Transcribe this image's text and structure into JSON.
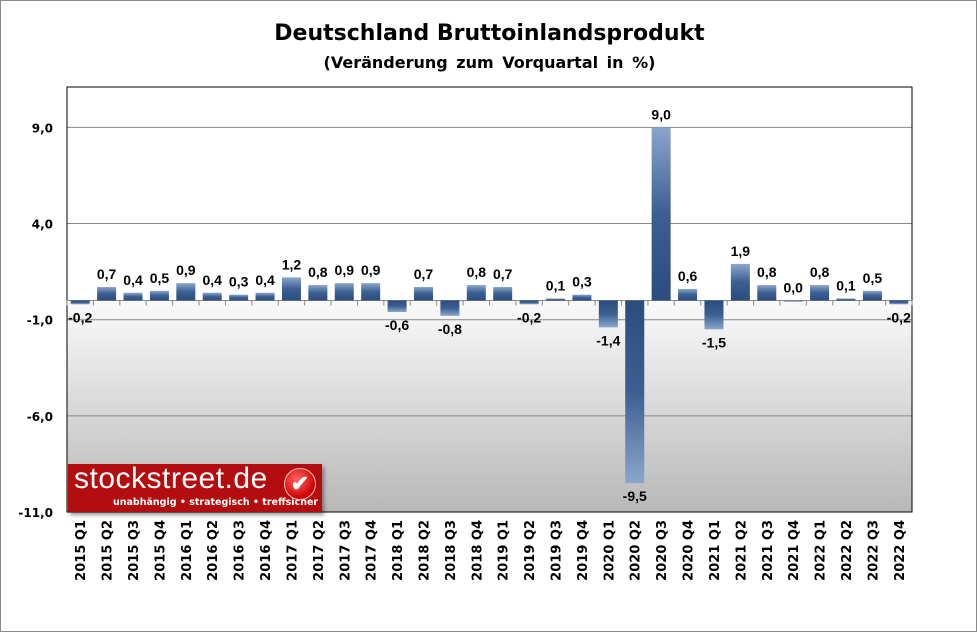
{
  "chart_data": {
    "type": "bar",
    "title": "Deutschland Bruttoinlandsprodukt",
    "subtitle": "(Veränderung zum Vorquartal in %)",
    "categories": [
      "2015 Q1",
      "2015 Q2",
      "2015 Q3",
      "2015 Q4",
      "2016 Q1",
      "2016 Q2",
      "2016 Q3",
      "2016 Q4",
      "2017 Q1",
      "2017 Q2",
      "2017 Q3",
      "2017 Q4",
      "2018 Q1",
      "2018 Q2",
      "2018 Q3",
      "2018 Q4",
      "2019 Q1",
      "2019 Q2",
      "2019 Q3",
      "2019 Q4",
      "2020 Q1",
      "2020 Q2",
      "2020 Q3",
      "2020 Q4",
      "2021 Q1",
      "2021 Q2",
      "2021 Q3",
      "2021 Q4",
      "2022 Q1",
      "2022 Q2",
      "2022 Q3",
      "2022 Q4"
    ],
    "values": [
      -0.2,
      0.7,
      0.4,
      0.5,
      0.9,
      0.4,
      0.3,
      0.4,
      1.2,
      0.8,
      0.9,
      0.9,
      -0.6,
      0.7,
      -0.8,
      0.8,
      0.7,
      -0.2,
      0.1,
      0.3,
      -1.4,
      -9.5,
      9.0,
      0.6,
      -1.5,
      1.9,
      0.8,
      0.0,
      0.8,
      0.1,
      0.5,
      -0.2
    ],
    "data_labels": [
      "-0,2",
      "0,7",
      "0,4",
      "0,5",
      "0,9",
      "0,4",
      "0,3",
      "0,4",
      "1,2",
      "0,8",
      "0,9",
      "0,9",
      "-0,6",
      "0,7",
      "-0,8",
      "0,8",
      "0,7",
      "-0,2",
      "0,1",
      "0,3",
      "-1,4",
      "-9,5",
      "9,0",
      "0,6",
      "-1,5",
      "1,9",
      "0,8",
      "0,0",
      "0,8",
      "0,1",
      "0,5",
      "-0,2"
    ],
    "yticks": [
      9,
      4,
      -1,
      -6,
      -11
    ],
    "ytick_labels": [
      "9,0",
      "4,0",
      "-1,0",
      "-6,0",
      "-11,0"
    ],
    "ylim": [
      -11,
      11.1
    ],
    "grid": true,
    "bar_color": "#2e5286"
  },
  "logo": {
    "text": "stockstreet.de",
    "tagline": "unabhängig • strategisch • treffsicher"
  }
}
